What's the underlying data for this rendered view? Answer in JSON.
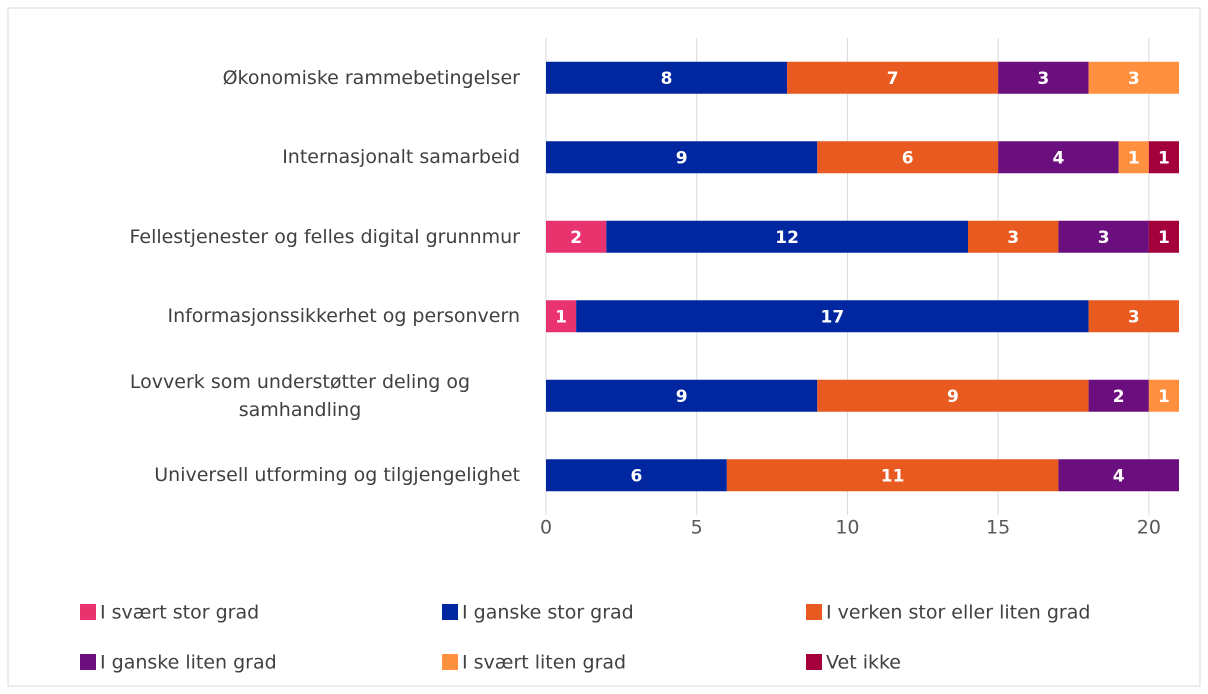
{
  "chart_data": {
    "type": "stacked-barh",
    "categories": [
      "Økonomiske rammebetingelser",
      "Internasjonalt samarbeid",
      "Fellestjenester og felles digital grunnmur",
      "Informasjonssikkerhet og personvern",
      "Lovverk som understøtter deling og samhandling",
      "Universell utforming og tilgjengelighet"
    ],
    "series": [
      {
        "name": "I svært stor grad",
        "color": "#e8336f",
        "values": [
          0,
          0,
          2,
          1,
          0,
          0
        ]
      },
      {
        "name": "I ganske stor grad",
        "color": "#0026a0",
        "values": [
          8,
          9,
          12,
          17,
          9,
          6
        ]
      },
      {
        "name": "I verken stor eller liten grad",
        "color": "#e85a1f",
        "values": [
          7,
          6,
          3,
          3,
          9,
          11
        ]
      },
      {
        "name": "I ganske liten grad",
        "color": "#6b0f7e",
        "values": [
          3,
          4,
          3,
          0,
          2,
          4
        ]
      },
      {
        "name": "I svært liten grad",
        "color": "#ff9040",
        "values": [
          3,
          1,
          0,
          0,
          1,
          0
        ]
      },
      {
        "name": "Vet ikke",
        "color": "#a3003c",
        "values": [
          0,
          1,
          1,
          0,
          0,
          0
        ]
      }
    ],
    "xlim": [
      0,
      21
    ],
    "xticks": [
      0,
      5,
      10,
      15,
      20
    ],
    "grid": true,
    "legend": "bottom"
  }
}
